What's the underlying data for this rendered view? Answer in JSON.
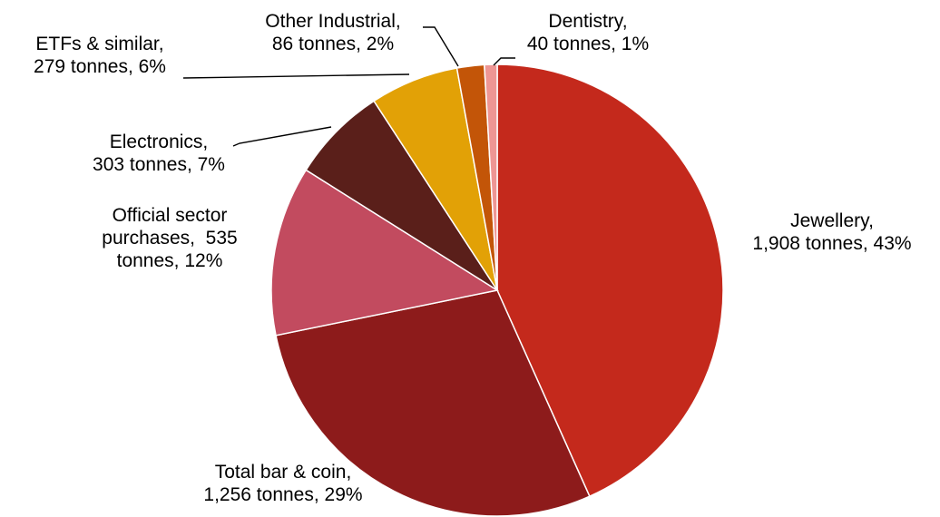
{
  "chart_data": {
    "type": "pie",
    "title": "",
    "unit": "tonnes",
    "series": [
      {
        "categories": [
          "Jewellery",
          "Total bar & coin",
          "Official sector purchases",
          "Electronics",
          "ETFs & similar",
          "Other Industrial",
          "Dentistry"
        ],
        "values": [
          1908,
          1256,
          535,
          303,
          279,
          86,
          40
        ],
        "percents": [
          43,
          29,
          12,
          7,
          6,
          2,
          1
        ],
        "colors": [
          "#C4291C",
          "#8D1B1B",
          "#C24B5F",
          "#5A1F1A",
          "#E2A106",
          "#C35508",
          "#EE9694"
        ],
        "labels": [
          [
            "Jewellery,",
            "1,908 tonnes, 43%"
          ],
          [
            "Total bar & coin,",
            "1,256 tonnes, 29%"
          ],
          [
            "Official sector",
            "purchases,  535",
            "tonnes, 12%"
          ],
          [
            "Electronics,",
            "303 tonnes, 7%"
          ],
          [
            "ETFs & similar,",
            "279 tonnes, 6%"
          ],
          [
            "Other Industrial,",
            "86 tonnes, 2%"
          ],
          [
            "Dentistry,",
            "40 tonnes, 1%"
          ]
        ]
      }
    ],
    "start_angle": "12 o'clock",
    "direction": "clockwise",
    "legend": "none",
    "data_labels": "outside with leader lines"
  }
}
